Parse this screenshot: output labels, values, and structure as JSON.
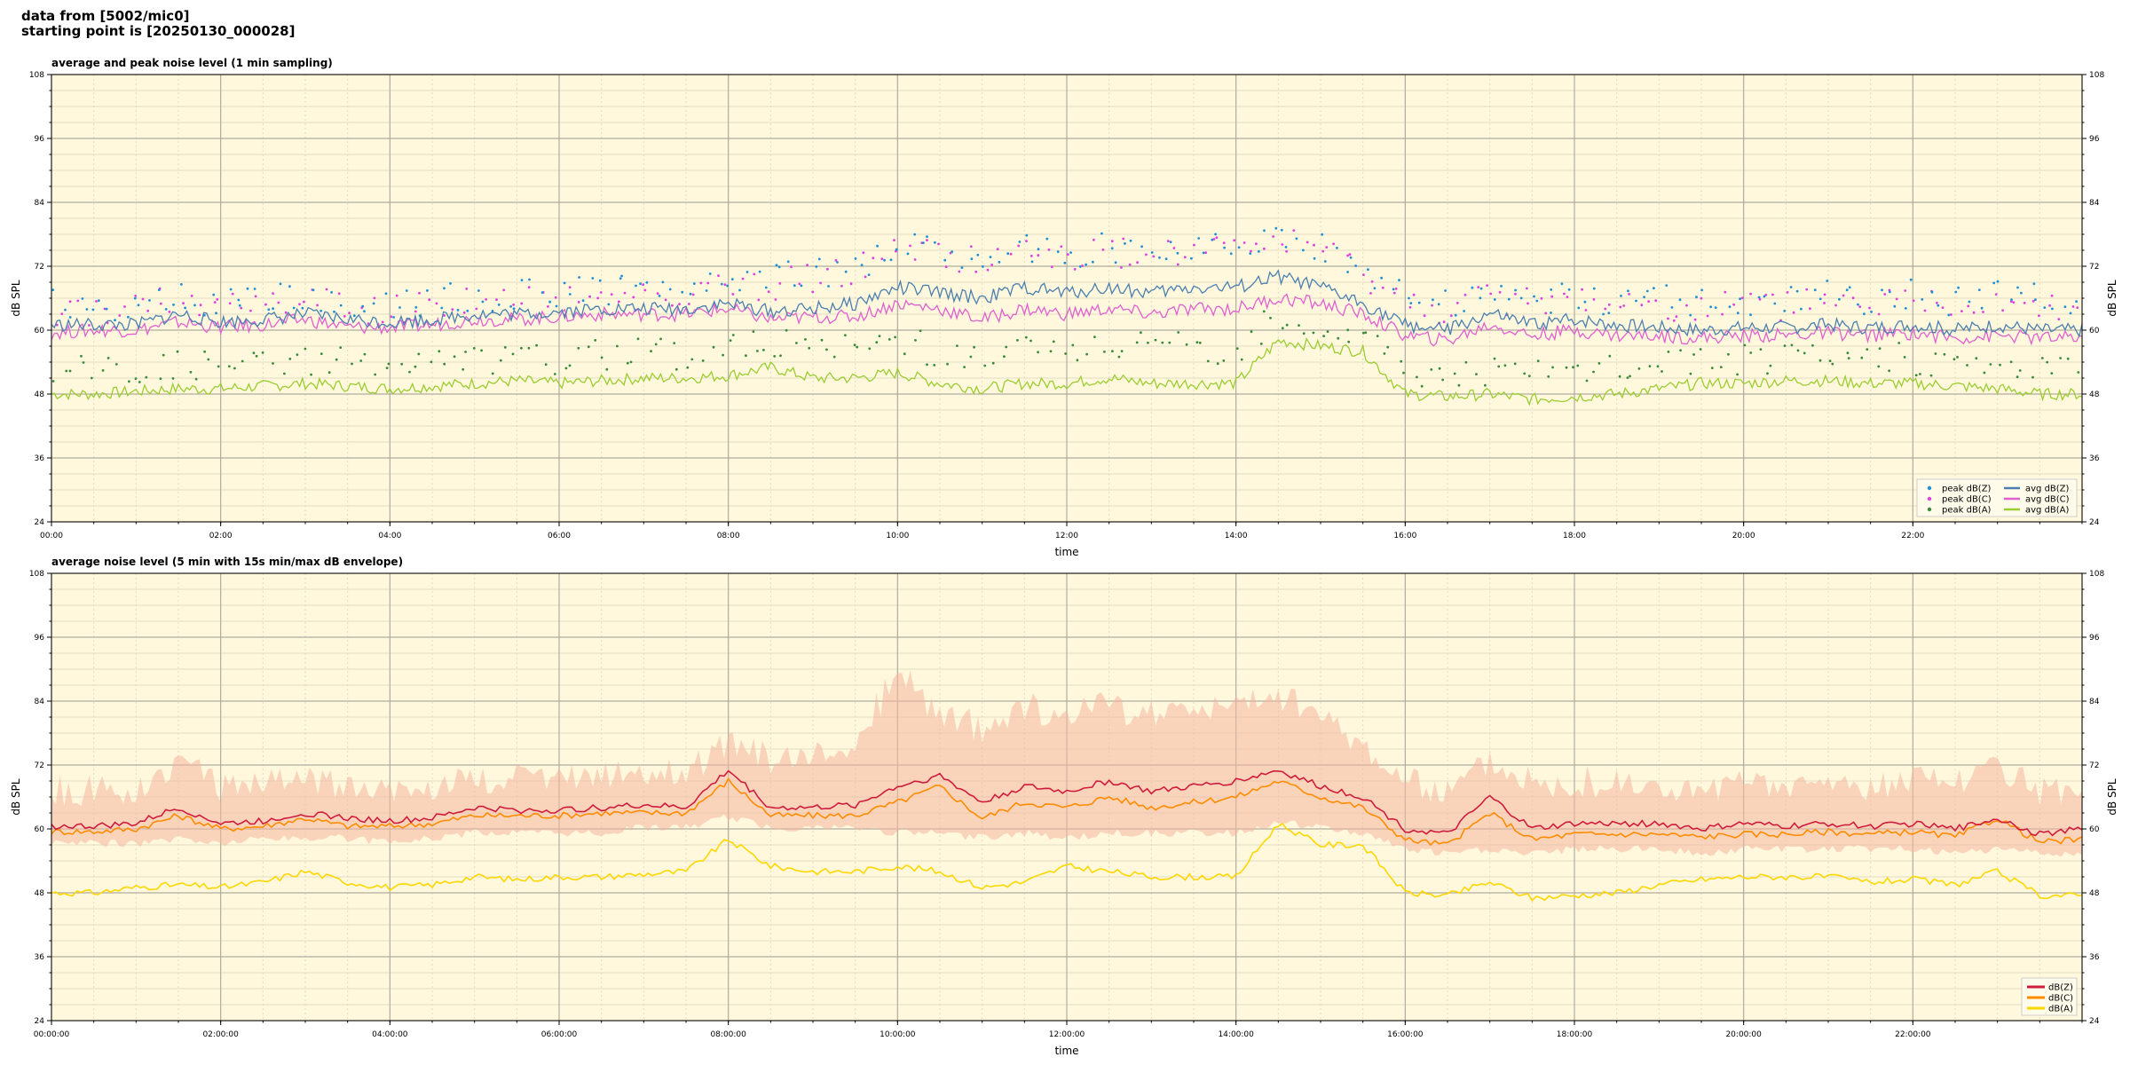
{
  "header": {
    "line1": "data from [5002/mic0]",
    "line2": "starting point is [20250130_000028]"
  },
  "colors": {
    "background": "#fff8dc",
    "peak_z": "#1f8fd6",
    "peak_c": "#e040e0",
    "peak_a": "#3a8a3a",
    "avg_z": "#4a7fb0",
    "avg_c": "#e060d0",
    "avg_a": "#9acd32",
    "env": "#f4b6a0",
    "z": "#d01c3c",
    "c": "#ff8c00",
    "a": "#ffd700"
  },
  "chart_data": [
    {
      "type": "line",
      "title": "average and peak noise level (1 min sampling)",
      "xlabel": "time",
      "ylabel": "dB SPL",
      "ylim": [
        24,
        108
      ],
      "xlim_hours": [
        0,
        24
      ],
      "yticks": [
        24,
        36,
        48,
        60,
        72,
        84,
        96,
        108
      ],
      "xtick_labels": [
        "00:00",
        "02:00",
        "04:00",
        "06:00",
        "08:00",
        "10:00",
        "12:00",
        "14:00",
        "16:00",
        "18:00",
        "20:00",
        "22:00"
      ],
      "grid": true,
      "legend_position": "bottom-right",
      "legend": [
        "peak dB(Z)",
        "peak dB(C)",
        "peak dB(A)",
        "avg dB(Z)",
        "avg dB(C)",
        "avg dB(A)"
      ],
      "x_hours": [
        0,
        0.5,
        1,
        1.5,
        2,
        2.5,
        3,
        3.5,
        4,
        4.5,
        5,
        5.5,
        6,
        6.5,
        7,
        7.5,
        8,
        8.5,
        9,
        9.5,
        10,
        10.5,
        11,
        11.5,
        12,
        12.5,
        13,
        13.5,
        14,
        14.5,
        15,
        15.5,
        16,
        16.5,
        17,
        17.5,
        18,
        18.5,
        19,
        19.5,
        20,
        20.5,
        21,
        21.5,
        22,
        22.5,
        23,
        23.5,
        24
      ],
      "series": [
        {
          "name": "avg dB(Z)",
          "values": [
            61,
            61,
            61,
            63,
            61.5,
            62,
            63,
            62,
            61.5,
            62,
            63,
            63,
            63.5,
            64,
            64,
            64,
            65,
            63.5,
            64,
            65,
            68,
            67,
            66,
            68,
            67,
            68,
            67,
            68,
            68,
            70,
            68,
            65,
            61,
            60,
            63,
            61,
            62,
            61,
            60.5,
            60,
            60.5,
            60.5,
            61,
            60.5,
            61,
            60,
            61,
            60,
            60
          ]
        },
        {
          "name": "avg dB(C)",
          "values": [
            59.5,
            60,
            60,
            61.5,
            60.5,
            61,
            62,
            60.5,
            60.5,
            61,
            62,
            62,
            62.5,
            63,
            63,
            63,
            64,
            62,
            62.5,
            62.5,
            65,
            64,
            62,
            64,
            63,
            64,
            63,
            64,
            64,
            66,
            65,
            63,
            59,
            58,
            61,
            59,
            60,
            59,
            59,
            58.5,
            59,
            59,
            59.5,
            59,
            59.5,
            58.5,
            59,
            58.5,
            58.5
          ]
        },
        {
          "name": "avg dB(A)",
          "values": [
            48,
            48,
            48.5,
            49,
            49,
            49.5,
            50,
            49.5,
            49,
            49.5,
            50,
            50.5,
            50,
            50.5,
            51,
            51,
            51.5,
            53,
            51,
            51,
            52,
            50,
            49,
            50,
            50,
            51,
            50,
            50,
            50,
            58,
            57,
            56,
            48,
            47.5,
            48,
            47,
            47.5,
            48,
            49,
            50,
            50,
            50.5,
            50.5,
            50,
            50,
            49.5,
            49,
            48,
            48
          ]
        },
        {
          "name": "peak dB(Z)",
          "values": [
            64,
            64,
            64,
            67,
            64,
            65,
            66,
            65,
            64,
            65,
            66,
            66,
            66,
            67,
            67,
            67,
            69,
            69,
            70,
            71,
            76,
            74,
            73,
            75,
            74,
            75,
            74,
            75,
            75,
            77,
            75,
            71,
            65,
            64,
            67,
            65,
            66,
            65,
            65,
            64,
            65,
            65,
            66,
            65,
            66,
            65,
            66,
            65,
            65
          ]
        },
        {
          "name": "peak dB(C)",
          "values": [
            63,
            63,
            63,
            66,
            63,
            64,
            65,
            64,
            63,
            64,
            65,
            65,
            65,
            66,
            66,
            66,
            68,
            68,
            69,
            70,
            75,
            73,
            72,
            74,
            73,
            74,
            73,
            74,
            74,
            76,
            74,
            70,
            64,
            63,
            66,
            64,
            65,
            64,
            64,
            63,
            64,
            64,
            65,
            64,
            65,
            64,
            65,
            64,
            64
          ]
        },
        {
          "name": "peak dB(A)",
          "values": [
            52,
            52,
            52,
            53,
            53,
            53,
            54,
            53,
            53,
            53,
            54,
            54,
            54,
            55,
            55,
            55,
            56,
            57,
            56,
            56,
            58,
            55,
            54,
            56,
            55,
            57,
            56,
            56,
            56,
            62,
            60,
            59,
            52,
            51,
            52,
            51,
            52,
            52,
            53,
            54,
            54,
            54,
            54,
            54,
            54,
            53,
            53,
            52,
            52
          ]
        }
      ]
    },
    {
      "type": "line",
      "title": "average noise level (5 min with 15s min/max dB envelope)",
      "xlabel": "time",
      "ylabel": "dB SPL",
      "ylim": [
        24,
        108
      ],
      "xlim_hours": [
        0,
        24
      ],
      "yticks": [
        24,
        36,
        48,
        60,
        72,
        84,
        96,
        108
      ],
      "xtick_labels": [
        "00:00:00",
        "02:00:00",
        "04:00:00",
        "06:00:00",
        "08:00:00",
        "10:00:00",
        "12:00:00",
        "14:00:00",
        "16:00:00",
        "18:00:00",
        "20:00:00",
        "22:00:00"
      ],
      "grid": true,
      "legend_position": "bottom-right",
      "legend": [
        "dB(Z)",
        "dB(C)",
        "dB(A)"
      ],
      "x_hours": [
        0,
        0.5,
        1,
        1.5,
        2,
        2.5,
        3,
        3.5,
        4,
        4.5,
        5,
        5.5,
        6,
        6.5,
        7,
        7.5,
        8,
        8.5,
        9,
        9.5,
        10,
        10.5,
        11,
        11.5,
        12,
        12.5,
        13,
        13.5,
        14,
        14.5,
        15,
        15.5,
        16,
        16.5,
        17,
        17.5,
        18,
        18.5,
        19,
        19.5,
        20,
        20.5,
        21,
        21.5,
        22,
        22.5,
        23,
        23.5,
        24
      ],
      "series": [
        {
          "name": "dB(Z)",
          "values": [
            60.5,
            60.5,
            61,
            64,
            61,
            61.5,
            63,
            62,
            61.5,
            62,
            64,
            63.5,
            63.5,
            64,
            64.5,
            64,
            71,
            64,
            64,
            64.5,
            68,
            70,
            65,
            68,
            67,
            69,
            67,
            68,
            69,
            71,
            68,
            66,
            60,
            59,
            66,
            60,
            61,
            61,
            61,
            60,
            61,
            60.5,
            61,
            60.5,
            61,
            60,
            62,
            59,
            60
          ]
        },
        {
          "name": "dB(C)",
          "values": [
            59.5,
            59.5,
            60,
            62.5,
            60,
            60.5,
            62,
            60.5,
            60.5,
            61,
            62.5,
            62.5,
            62.5,
            63,
            63,
            63,
            69,
            62.5,
            62.5,
            62.5,
            65,
            68,
            62,
            65,
            64,
            66,
            64,
            65,
            66,
            69,
            66,
            64,
            58,
            57,
            63,
            58,
            59,
            59,
            59,
            58.5,
            59,
            59,
            59.5,
            59,
            59.5,
            58.5,
            62,
            57.5,
            58
          ]
        },
        {
          "name": "dB(A)",
          "values": [
            48,
            48,
            49,
            49.5,
            49,
            50,
            52,
            50,
            49,
            49.5,
            51,
            50.5,
            51,
            51,
            51.5,
            52,
            58,
            53,
            52,
            52,
            53,
            52,
            49,
            50,
            53,
            52,
            51,
            51,
            51,
            61,
            57,
            57,
            48,
            47.5,
            50,
            47,
            47.5,
            48,
            49.5,
            50.5,
            51,
            51,
            51,
            50,
            50.5,
            49.5,
            52,
            47.5,
            47.5
          ]
        },
        {
          "name": "envelope max",
          "values": [
            66,
            66,
            66,
            72,
            66,
            67,
            68,
            67,
            66,
            67,
            68,
            68,
            68,
            69,
            69,
            69,
            75,
            72,
            73,
            75,
            88,
            80,
            78,
            82,
            80,
            82,
            80,
            82,
            82,
            84,
            80,
            75,
            68,
            66,
            72,
            67,
            68,
            67,
            67,
            66,
            67,
            67,
            68,
            67,
            68,
            67,
            70,
            66,
            66
          ]
        },
        {
          "name": "envelope min",
          "values": [
            58,
            58,
            58,
            59,
            58,
            59,
            59,
            59,
            58,
            59,
            60,
            60,
            60,
            60,
            61,
            61,
            63,
            61,
            61,
            61,
            60,
            60,
            59,
            60,
            59,
            60,
            60,
            60,
            60,
            62,
            61,
            60,
            57,
            56,
            57,
            56,
            57,
            57,
            57,
            56,
            57,
            57,
            57,
            57,
            57,
            56,
            57,
            56,
            56
          ]
        }
      ]
    }
  ]
}
